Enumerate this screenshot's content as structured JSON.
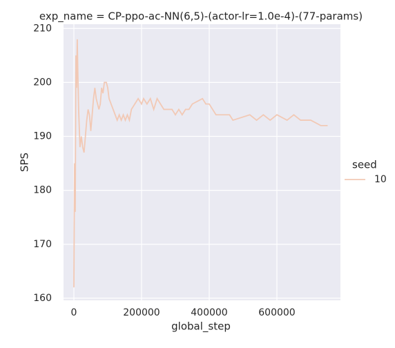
{
  "chart_data": {
    "type": "line",
    "title": "exp_name = CP-ppo-ac-NN(6,5)-(actor-lr=1.0e-4)-(77-params)",
    "xlabel": "global_step",
    "ylabel": "SPS",
    "legend_title": "seed",
    "x": [
      0,
      2000,
      4000,
      6000,
      8000,
      10000,
      12000,
      14000,
      18000,
      22000,
      26000,
      30000,
      34000,
      38000,
      42000,
      46000,
      50000,
      54000,
      58000,
      62000,
      66000,
      70000,
      74000,
      78000,
      82000,
      86000,
      90000,
      96000,
      100000,
      104000,
      110000,
      116000,
      122000,
      128000,
      134000,
      140000,
      146000,
      152000,
      158000,
      164000,
      170000,
      180000,
      190000,
      200000,
      206000,
      216000,
      226000,
      236000,
      246000,
      256000,
      266000,
      290000,
      300000,
      310000,
      320000,
      330000,
      340000,
      350000,
      380000,
      390000,
      400000,
      410000,
      420000,
      460000,
      470000,
      520000,
      540000,
      560000,
      580000,
      600000,
      630000,
      650000,
      670000,
      700000,
      730000,
      750000
    ],
    "series": [
      {
        "name": "10",
        "color": "#f2c9b5",
        "values": [
          162,
          185,
          176,
          205,
          199,
          208,
          201,
          195,
          188,
          190,
          188,
          187,
          190,
          193,
          195,
          194,
          191,
          194,
          197,
          199,
          197,
          196,
          195,
          196,
          199,
          198,
          200,
          200,
          199,
          197,
          196,
          195,
          194,
          193,
          194,
          193,
          194,
          193,
          194,
          193,
          195,
          196,
          197,
          196,
          197,
          196,
          197,
          195,
          197,
          196,
          195,
          195,
          194,
          195,
          194,
          195,
          195,
          196,
          197,
          196,
          196,
          195,
          194,
          194,
          193,
          194,
          193,
          194,
          193,
          194,
          193,
          194,
          193,
          193,
          192,
          192
        ]
      }
    ],
    "xlim": [
      -30600,
      787800
    ],
    "ylim": [
      159.6,
      210.8
    ],
    "xticks": [
      0,
      200000,
      400000,
      600000
    ],
    "yticks": [
      160,
      170,
      180,
      190,
      200,
      210
    ],
    "grid": true,
    "legend": "right"
  }
}
